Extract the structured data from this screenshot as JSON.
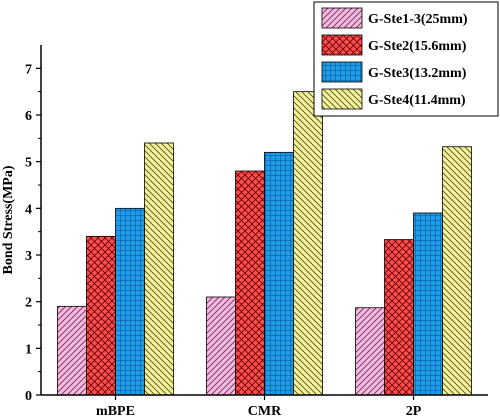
{
  "chart_data": {
    "type": "bar",
    "categories": [
      "mBPE",
      "CMR",
      "2P"
    ],
    "ylabel": "Bond Stress(MPa)",
    "xlabel": "",
    "ylim": [
      0,
      7.5
    ],
    "yticks": [
      "0",
      "1",
      "2",
      "3",
      "4",
      "5",
      "6",
      "7"
    ],
    "legend_position": "top-right",
    "grid": false,
    "series": [
      {
        "name": "G-Ste1-3(25mm)",
        "values": [
          1.9,
          2.1,
          1.87
        ],
        "color": "#f7b8df",
        "pattern": "diagonal-lines"
      },
      {
        "name": "G-Ste2(15.6mm)",
        "values": [
          3.4,
          4.8,
          3.33
        ],
        "color": "#ff4d4d",
        "pattern": "crosshatch"
      },
      {
        "name": "G-Ste3(13.2mm)",
        "values": [
          4.0,
          5.2,
          3.9
        ],
        "color": "#1e9bea",
        "pattern": "grid"
      },
      {
        "name": "G-Ste4(11.4mm)",
        "values": [
          5.4,
          6.5,
          5.32
        ],
        "color": "#f6f29a",
        "pattern": "diagonal-lines-reverse"
      }
    ]
  }
}
